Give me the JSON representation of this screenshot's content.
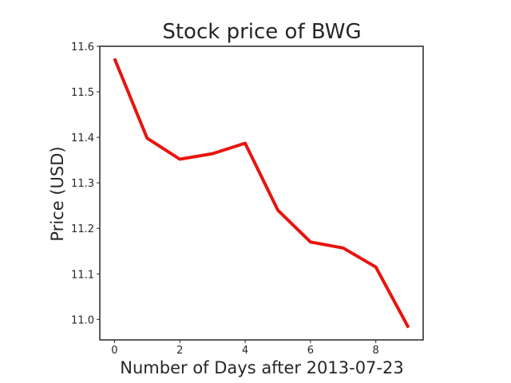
{
  "chart_data": {
    "type": "line",
    "title": "Stock price of BWG",
    "xlabel": "Number of Days after 2013-07-23",
    "ylabel": "Price (USD)",
    "xlim": [
      -0.45,
      9.45
    ],
    "ylim": [
      10.955,
      11.6
    ],
    "xticks": [
      0,
      2,
      4,
      6,
      8
    ],
    "xtick_labels": [
      "0",
      "2",
      "4",
      "6",
      "8"
    ],
    "yticks": [
      11.0,
      11.1,
      11.2,
      11.3,
      11.4,
      11.5,
      11.6
    ],
    "ytick_labels": [
      "11.0",
      "11.1",
      "11.2",
      "11.3",
      "11.4",
      "11.5",
      "11.6"
    ],
    "grid": false,
    "series": [
      {
        "x": [
          0,
          1,
          2,
          3,
          4,
          5,
          6,
          7,
          8,
          9
        ],
        "values": [
          11.573,
          11.398,
          11.352,
          11.364,
          11.387,
          11.24,
          11.17,
          11.157,
          11.115,
          10.982
        ],
        "color": "#e8140e"
      }
    ]
  }
}
